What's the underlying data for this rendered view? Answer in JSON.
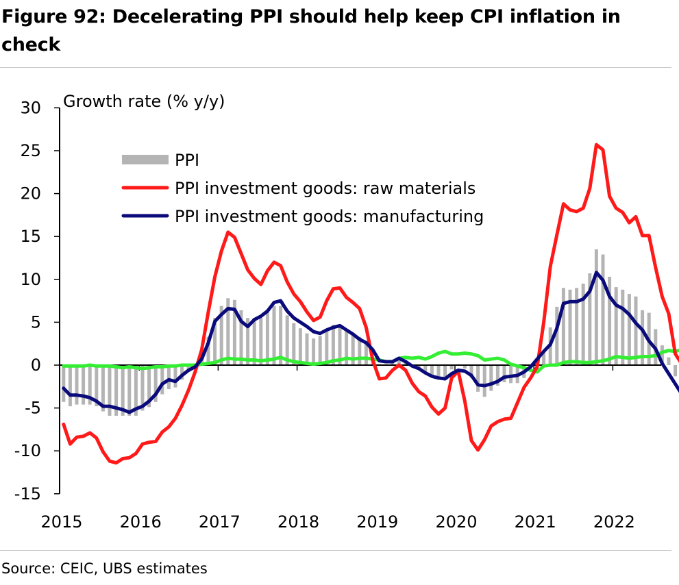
{
  "title": "Figure 92: Decelerating PPI should help keep CPI inflation in check",
  "source": "Source: CEIC, UBS estimates",
  "colors": {
    "ppi": "#b4b4b4",
    "raw_materials": "#ff1a1a",
    "manufacturing": "#0a0a7a",
    "cpi": "#33ee33"
  },
  "chart_data": {
    "type": "bar",
    "ylabel": "Growth rate (% y/y)",
    "ylim": [
      -15,
      30
    ],
    "yticks": [
      30,
      25,
      20,
      15,
      10,
      5,
      0,
      -5,
      -10,
      -15
    ],
    "xticks": [
      "2015",
      "2016",
      "2017",
      "2018",
      "2019",
      "2020",
      "2021",
      "2022"
    ],
    "legend_position": "top-left inside",
    "grid": false,
    "x_start": "2015-01",
    "frequency": "monthly",
    "series": [
      {
        "name": "PPI",
        "type": "bar",
        "values": [
          -4.3,
          -4.8,
          -4.6,
          -4.6,
          -4.6,
          -4.8,
          -5.4,
          -5.9,
          -5.9,
          -5.9,
          -5.9,
          -5.9,
          -5.3,
          -4.9,
          -4.3,
          -3.4,
          -2.8,
          -2.6,
          -1.7,
          -0.8,
          0.1,
          1.2,
          3.3,
          5.5,
          6.9,
          7.8,
          7.6,
          6.4,
          5.5,
          5.5,
          5.5,
          6.3,
          6.9,
          6.9,
          5.8,
          4.9,
          4.3,
          3.7,
          3.1,
          3.4,
          4.1,
          4.7,
          4.6,
          4.1,
          3.6,
          3.3,
          2.7,
          0.9,
          0.1,
          0.1,
          0.4,
          0.9,
          0.6,
          0.0,
          -0.3,
          -0.8,
          -1.2,
          -1.6,
          -1.4,
          -0.5,
          0.1,
          -0.4,
          -1.5,
          -3.1,
          -3.7,
          -3.0,
          -2.4,
          -2.0,
          -2.1,
          -2.1,
          -1.5,
          -0.4,
          0.3,
          1.7,
          4.4,
          6.8,
          9.0,
          8.8,
          9.0,
          9.5,
          10.7,
          13.5,
          12.9,
          10.3,
          9.1,
          8.8,
          8.3,
          8.0,
          6.4,
          6.1,
          4.2,
          2.3,
          0.9,
          -1.3,
          -1.3
        ]
      },
      {
        "name": "PPI investment goods: raw materials",
        "type": "line",
        "values": [
          -6.9,
          -9.2,
          -8.4,
          -8.3,
          -7.9,
          -8.5,
          -10.1,
          -11.2,
          -11.4,
          -10.9,
          -10.8,
          -10.3,
          -9.2,
          -9.0,
          -8.9,
          -7.8,
          -7.2,
          -6.2,
          -4.7,
          -2.9,
          -0.8,
          1.8,
          6.2,
          10.3,
          13.3,
          15.5,
          14.9,
          13.0,
          11.1,
          10.1,
          9.4,
          11.0,
          12.0,
          11.6,
          9.7,
          8.3,
          7.4,
          6.2,
          5.2,
          5.6,
          7.5,
          8.9,
          9.0,
          7.9,
          7.3,
          6.6,
          4.4,
          0.6,
          -1.6,
          -1.5,
          -0.6,
          0.0,
          -0.6,
          -2.1,
          -3.1,
          -3.6,
          -4.9,
          -5.7,
          -5.0,
          -1.5,
          -0.7,
          -4.2,
          -8.8,
          -9.9,
          -8.7,
          -7.1,
          -6.6,
          -6.3,
          -6.2,
          -4.4,
          -2.6,
          -1.5,
          -0.2,
          5.0,
          11.5,
          15.2,
          18.8,
          18.1,
          17.9,
          18.3,
          20.6,
          25.7,
          25.1,
          19.7,
          18.3,
          17.8,
          16.6,
          17.3,
          15.1,
          15.1,
          11.4,
          8.0,
          6.0,
          1.3,
          0.1
        ]
      },
      {
        "name": "PPI investment goods: manufacturing",
        "type": "line",
        "values": [
          -2.7,
          -3.5,
          -3.5,
          -3.6,
          -3.8,
          -4.2,
          -4.8,
          -4.8,
          -5.0,
          -5.2,
          -5.5,
          -5.1,
          -4.8,
          -4.2,
          -3.4,
          -2.2,
          -1.7,
          -1.9,
          -1.2,
          -0.6,
          -0.2,
          0.7,
          2.6,
          5.1,
          5.9,
          6.6,
          6.5,
          5.1,
          4.5,
          5.3,
          5.7,
          6.3,
          7.3,
          7.5,
          6.3,
          5.5,
          5.0,
          4.5,
          3.9,
          3.7,
          4.1,
          4.4,
          4.6,
          4.1,
          3.6,
          3.0,
          2.6,
          1.8,
          0.5,
          0.4,
          0.4,
          0.8,
          0.4,
          -0.1,
          -0.4,
          -0.9,
          -1.3,
          -1.5,
          -1.6,
          -1.0,
          -0.6,
          -0.7,
          -1.2,
          -2.3,
          -2.4,
          -2.2,
          -1.9,
          -1.4,
          -1.3,
          -1.2,
          -0.8,
          -0.2,
          0.7,
          1.6,
          2.4,
          4.3,
          7.2,
          7.4,
          7.4,
          7.7,
          8.6,
          10.8,
          9.9,
          8.0,
          7.0,
          6.6,
          5.9,
          4.9,
          4.1,
          2.8,
          1.9,
          0.2,
          -1.0,
          -2.2,
          -3.4,
          -3.2
        ]
      },
      {
        "name": "",
        "type": "line",
        "values": [
          -0.1,
          -0.1,
          -0.1,
          -0.1,
          0.0,
          -0.1,
          -0.1,
          -0.1,
          -0.2,
          -0.3,
          -0.2,
          -0.3,
          -0.4,
          -0.3,
          -0.2,
          -0.2,
          -0.1,
          -0.1,
          0.0,
          0.0,
          0.0,
          0.1,
          0.2,
          0.3,
          0.6,
          0.8,
          0.7,
          0.7,
          0.6,
          0.6,
          0.5,
          0.6,
          0.7,
          0.9,
          0.6,
          0.4,
          0.3,
          0.2,
          0.1,
          0.2,
          0.3,
          0.5,
          0.6,
          0.8,
          0.7,
          0.8,
          0.8,
          0.7,
          0.6,
          0.4,
          0.4,
          0.8,
          0.9,
          0.8,
          0.9,
          0.7,
          1.0,
          1.4,
          1.6,
          1.3,
          1.3,
          1.4,
          1.3,
          1.1,
          0.6,
          0.7,
          0.8,
          0.6,
          0.1,
          -0.1,
          -0.3,
          -0.6,
          -0.8,
          -0.1,
          0.0,
          0.0,
          0.3,
          0.4,
          0.4,
          0.3,
          0.3,
          0.4,
          0.5,
          0.7,
          1.0,
          0.9,
          0.8,
          0.9,
          1.0,
          1.0,
          1.1,
          1.5,
          1.7,
          1.6,
          1.8,
          2.1,
          1.9
        ]
      }
    ]
  }
}
